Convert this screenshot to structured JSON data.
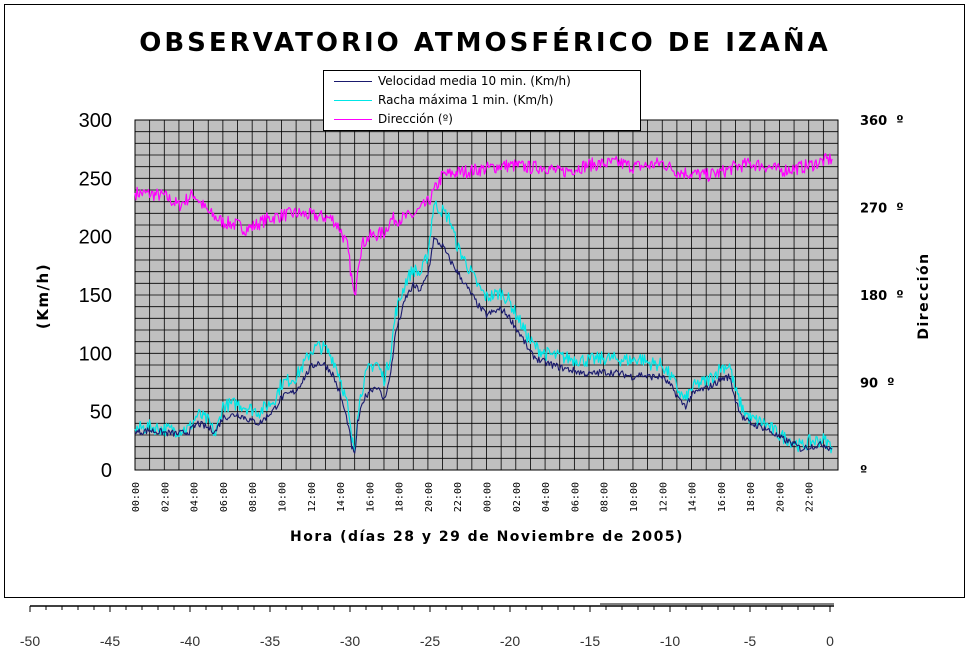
{
  "chart_data": {
    "type": "line",
    "title": "OBSERVATORIO ATMOSFÉRICO DE IZAÑA",
    "xlabel": "Hora (días 28 y 29 de Noviembre de 2005)",
    "ylabel": "(Km/h)",
    "ylabel_right": "Dirección",
    "ylim": [
      0,
      300
    ],
    "ylim_right": [
      0,
      360
    ],
    "y_ticks": [
      "0",
      "50",
      "100",
      "150",
      "200",
      "250",
      "300"
    ],
    "y_right_ticks": [
      "º",
      "90  º",
      "180  º",
      "270  º",
      "360  º"
    ],
    "x_range_hours": [
      0,
      48
    ],
    "x_ticks": [
      "00:00",
      "02:00",
      "04:00",
      "06:00",
      "08:00",
      "10:00",
      "12:00",
      "14:00",
      "16:00",
      "18:00",
      "20:00",
      "22:00",
      "00:00",
      "02:00",
      "04:00",
      "06:00",
      "08:00",
      "10:00",
      "12:00",
      "14:00",
      "16:00",
      "18:00",
      "20:00",
      "22:00"
    ],
    "series": [
      {
        "name": "Velocidad media 10 min. (Km/h)",
        "color": "#1a1a6e",
        "axis": "left",
        "points": [
          [
            0,
            32
          ],
          [
            1,
            34
          ],
          [
            2,
            32
          ],
          [
            3,
            31
          ],
          [
            3.7,
            33
          ],
          [
            4.3,
            40
          ],
          [
            5,
            36
          ],
          [
            5.5,
            33
          ],
          [
            6,
            45
          ],
          [
            7,
            48
          ],
          [
            8,
            42
          ],
          [
            8.5,
            40
          ],
          [
            9,
            46
          ],
          [
            9.5,
            52
          ],
          [
            10,
            62
          ],
          [
            11,
            68
          ],
          [
            11.5,
            78
          ],
          [
            12,
            88
          ],
          [
            12.5,
            92
          ],
          [
            13,
            90
          ],
          [
            13.5,
            82
          ],
          [
            14,
            65
          ],
          [
            14.5,
            42
          ],
          [
            14.8,
            20
          ],
          [
            15,
            12
          ],
          [
            15.2,
            40
          ],
          [
            15.6,
            60
          ],
          [
            16,
            68
          ],
          [
            16.5,
            72
          ],
          [
            17,
            60
          ],
          [
            17.4,
            78
          ],
          [
            17.8,
            118
          ],
          [
            18.5,
            148
          ],
          [
            19,
            158
          ],
          [
            19.5,
            154
          ],
          [
            20,
            168
          ],
          [
            20.4,
            198
          ],
          [
            21,
            192
          ],
          [
            21.5,
            180
          ],
          [
            22,
            170
          ],
          [
            22.5,
            160
          ],
          [
            23,
            150
          ],
          [
            23.5,
            140
          ],
          [
            24,
            133
          ],
          [
            25,
            138
          ],
          [
            25.5,
            132
          ],
          [
            26,
            122
          ],
          [
            26.5,
            112
          ],
          [
            27,
            100
          ],
          [
            27.5,
            95
          ],
          [
            28,
            92
          ],
          [
            29,
            88
          ],
          [
            30,
            85
          ],
          [
            31,
            82
          ],
          [
            32,
            84
          ],
          [
            33,
            83
          ],
          [
            34,
            80
          ],
          [
            34.5,
            82
          ],
          [
            35,
            80
          ],
          [
            36,
            80
          ],
          [
            36.7,
            70
          ],
          [
            37.3,
            58
          ],
          [
            37.6,
            55
          ],
          [
            38,
            64
          ],
          [
            38.5,
            68
          ],
          [
            39,
            70
          ],
          [
            39.6,
            74
          ],
          [
            40,
            78
          ],
          [
            40.6,
            80
          ],
          [
            41,
            60
          ],
          [
            41.5,
            45
          ],
          [
            42,
            40
          ],
          [
            43,
            36
          ],
          [
            44,
            28
          ],
          [
            45,
            22
          ],
          [
            45.5,
            18
          ],
          [
            46,
            20
          ],
          [
            47,
            22
          ],
          [
            47.6,
            18
          ]
        ]
      },
      {
        "name": "Racha máxima 1 min. (Km/h)",
        "color": "#00e6e6",
        "axis": "left",
        "points": [
          [
            0,
            35
          ],
          [
            1,
            37
          ],
          [
            2,
            35
          ],
          [
            3,
            34
          ],
          [
            3.7,
            36
          ],
          [
            4.3,
            48
          ],
          [
            5,
            42
          ],
          [
            5.5,
            30
          ],
          [
            6,
            55
          ],
          [
            7,
            57
          ],
          [
            8,
            52
          ],
          [
            8.5,
            50
          ],
          [
            9,
            55
          ],
          [
            9.5,
            60
          ],
          [
            10,
            74
          ],
          [
            11,
            80
          ],
          [
            11.5,
            90
          ],
          [
            12,
            102
          ],
          [
            12.5,
            106
          ],
          [
            13,
            104
          ],
          [
            13.5,
            96
          ],
          [
            14,
            80
          ],
          [
            14.5,
            55
          ],
          [
            14.8,
            25
          ],
          [
            15,
            18
          ],
          [
            15.2,
            50
          ],
          [
            15.6,
            75
          ],
          [
            16,
            88
          ],
          [
            16.5,
            92
          ],
          [
            17,
            78
          ],
          [
            17.4,
            95
          ],
          [
            17.8,
            135
          ],
          [
            18.5,
            162
          ],
          [
            19,
            172
          ],
          [
            19.5,
            168
          ],
          [
            20,
            185
          ],
          [
            20.4,
            228
          ],
          [
            21,
            222
          ],
          [
            21.5,
            215
          ],
          [
            22,
            192
          ],
          [
            22.5,
            180
          ],
          [
            23,
            168
          ],
          [
            23.5,
            156
          ],
          [
            24,
            148
          ],
          [
            25,
            152
          ],
          [
            25.5,
            146
          ],
          [
            26,
            134
          ],
          [
            26.5,
            122
          ],
          [
            27,
            110
          ],
          [
            27.5,
            104
          ],
          [
            28,
            100
          ],
          [
            29,
            97
          ],
          [
            30,
            95
          ],
          [
            31,
            94
          ],
          [
            32,
            96
          ],
          [
            33,
            95
          ],
          [
            34,
            94
          ],
          [
            34.5,
            96
          ],
          [
            35,
            92
          ],
          [
            36,
            90
          ],
          [
            36.7,
            78
          ],
          [
            37.3,
            64
          ],
          [
            37.6,
            60
          ],
          [
            38,
            70
          ],
          [
            38.5,
            74
          ],
          [
            39,
            76
          ],
          [
            39.6,
            82
          ],
          [
            40,
            88
          ],
          [
            40.6,
            90
          ],
          [
            41,
            68
          ],
          [
            41.5,
            52
          ],
          [
            42,
            44
          ],
          [
            43,
            40
          ],
          [
            44,
            30
          ],
          [
            45,
            24
          ],
          [
            45.5,
            20
          ],
          [
            46,
            24
          ],
          [
            47,
            26
          ],
          [
            47.6,
            20
          ]
        ]
      },
      {
        "name": "Dirección (º)",
        "color": "#ff00ff",
        "axis": "right",
        "points": [
          [
            0,
            285
          ],
          [
            1,
            284
          ],
          [
            2,
            282
          ],
          [
            3,
            272
          ],
          [
            4,
            284
          ],
          [
            5,
            265
          ],
          [
            6,
            255
          ],
          [
            7,
            252
          ],
          [
            7.5,
            248
          ],
          [
            8,
            250
          ],
          [
            9,
            258
          ],
          [
            10,
            262
          ],
          [
            11,
            264
          ],
          [
            12,
            262
          ],
          [
            13,
            260
          ],
          [
            13.5,
            258
          ],
          [
            14,
            248
          ],
          [
            14.5,
            230
          ],
          [
            15,
            175
          ],
          [
            15.2,
            210
          ],
          [
            15.5,
            232
          ],
          [
            16,
            240
          ],
          [
            17,
            244
          ],
          [
            17.5,
            258
          ],
          [
            18,
            258
          ],
          [
            19,
            262
          ],
          [
            20,
            275
          ],
          [
            21,
            303
          ],
          [
            22,
            306
          ],
          [
            23,
            308
          ],
          [
            24,
            310
          ],
          [
            25,
            313
          ],
          [
            26,
            313
          ],
          [
            27,
            311
          ],
          [
            28,
            312
          ],
          [
            29,
            306
          ],
          [
            30,
            310
          ],
          [
            31,
            314
          ],
          [
            32,
            315
          ],
          [
            33,
            316
          ],
          [
            34,
            312
          ],
          [
            35,
            313
          ],
          [
            36,
            316
          ],
          [
            37,
            307
          ],
          [
            38,
            305
          ],
          [
            39,
            303
          ],
          [
            40,
            306
          ],
          [
            41,
            312
          ],
          [
            42,
            315
          ],
          [
            43,
            313
          ],
          [
            44,
            308
          ],
          [
            45,
            310
          ],
          [
            46,
            313
          ],
          [
            47,
            318
          ],
          [
            47.6,
            320
          ]
        ]
      }
    ]
  },
  "bottom_scale": {
    "labels": [
      "-50",
      "-45",
      "-40",
      "-35",
      "-30",
      "-25",
      "-20",
      "-15",
      "-10",
      "-5",
      "0"
    ]
  }
}
